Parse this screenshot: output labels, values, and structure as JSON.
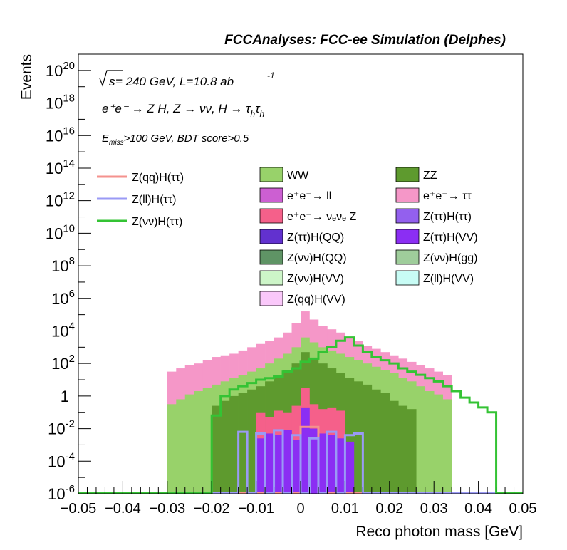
{
  "header": {
    "title": "FCCAnalyses: FCC-ee Simulation (Delphes)"
  },
  "annotations": {
    "sqrt_s": "s",
    "energy_lumi": " = 240 GeV, L=10.8 ab",
    "lumi_exp": "-1",
    "process": "e⁺e⁻ → Z H, Z → νν, H → τ",
    "process_sub1": "h",
    "process_tau2": "τ",
    "process_sub2": "h",
    "cut_E": "E",
    "cut_sub": "miss",
    "cut_rest": ">100 GeV, BDT score>0.5"
  },
  "chart_data": {
    "type": "area",
    "title": "FCCAnalyses: FCC-ee Simulation (Delphes)",
    "xlabel": "Reco photon mass [GeV]",
    "ylabel": "Events",
    "xlim": [
      -0.05,
      0.05
    ],
    "ylim_log10": [
      -6,
      21
    ],
    "y_scale": "log",
    "x_ticks": [
      "−0.05",
      "−0.04",
      "−0.03",
      "−0.02",
      "−0.01",
      "0",
      "0.01",
      "0.02",
      "0.03",
      "0.04",
      "0.05"
    ],
    "y_ticks": [
      {
        "base": "10",
        "exp": "-6",
        "log": -6
      },
      {
        "base": "10",
        "exp": "-4",
        "log": -4
      },
      {
        "base": "10",
        "exp": "-2",
        "log": -2
      },
      {
        "base": "1",
        "exp": "",
        "log": 0
      },
      {
        "base": "10",
        "exp": "2",
        "log": 2
      },
      {
        "base": "10",
        "exp": "4",
        "log": 4
      },
      {
        "base": "10",
        "exp": "6",
        "log": 6
      },
      {
        "base": "10",
        "exp": "8",
        "log": 8
      },
      {
        "base": "10",
        "exp": "10",
        "log": 10
      },
      {
        "base": "10",
        "exp": "12",
        "log": 12
      },
      {
        "base": "10",
        "exp": "14",
        "log": 14
      },
      {
        "base": "10",
        "exp": "16",
        "log": 16
      },
      {
        "base": "10",
        "exp": "18",
        "log": 18
      },
      {
        "base": "10",
        "exp": "20",
        "log": 20
      }
    ],
    "bin_edges_range": [
      -0.05,
      0.05
    ],
    "n_bins": 50,
    "stack_note": "log10 of cumulative stacked event counts per bin; first bin listed corresponds to x=-0.05",
    "stack_log10": {
      "ee_tautau": [
        -6,
        -6,
        -6,
        -6,
        -6,
        -6,
        -6,
        -6,
        -6,
        -6,
        1.5,
        1.7,
        1.9,
        2.0,
        2.2,
        2.4,
        2.5,
        2.6,
        2.8,
        3.0,
        3.2,
        3.4,
        3.6,
        3.9,
        4.5,
        5.2,
        4.7,
        4.3,
        4.1,
        3.9,
        3.6,
        3.4,
        3.1,
        2.9,
        2.7,
        2.5,
        2.3,
        2.1,
        1.9,
        1.7,
        1.5,
        1.3,
        -6,
        -6,
        -6,
        -6,
        -6,
        -6,
        -6,
        -6
      ],
      "WW": [
        -6,
        -6,
        -6,
        -6,
        -6,
        -6,
        -6,
        -6,
        -6,
        -6,
        -0.5,
        -0.2,
        0.1,
        0.3,
        0.5,
        0.7,
        0.9,
        1.1,
        1.3,
        1.5,
        1.7,
        2.0,
        2.3,
        2.6,
        3.0,
        3.6,
        3.3,
        3.0,
        2.8,
        2.6,
        2.4,
        2.2,
        2.0,
        1.8,
        1.6,
        1.4,
        1.1,
        0.9,
        0.6,
        0.3,
        0.1,
        -0.2,
        -6,
        -6,
        -6,
        -6,
        -6,
        -6,
        -6,
        -6
      ],
      "ZZ": [
        -6,
        -6,
        -6,
        -6,
        -6,
        -6,
        -6,
        -6,
        -6,
        -6,
        -6,
        -6,
        -6,
        -6,
        -6,
        -0.6,
        -0.3,
        0.0,
        0.2,
        0.4,
        0.6,
        0.9,
        1.2,
        1.6,
        2.0,
        2.7,
        2.3,
        2.0,
        1.7,
        1.4,
        1.1,
        0.9,
        0.7,
        0.4,
        0.2,
        -0.3,
        -0.6,
        -0.8,
        -6,
        -6,
        -6,
        -6,
        -6,
        -6,
        -6,
        -6,
        -6,
        -6,
        -6,
        -6
      ],
      "ee_nunuZ": [
        -6,
        -6,
        -6,
        -6,
        -6,
        -6,
        -6,
        -6,
        -6,
        -6,
        -6,
        -6,
        -6,
        -6,
        -6,
        -6,
        -6,
        -6,
        -6,
        -6,
        -1.0,
        -1.3,
        -0.9,
        -1.0,
        -0.6,
        0.5,
        -0.5,
        -0.8,
        -0.7,
        -0.9,
        -6,
        -6,
        -6,
        -6,
        -6,
        -6,
        -6,
        -6,
        -6,
        -6,
        -6,
        -6,
        -6,
        -6,
        -6,
        -6,
        -6,
        -6,
        -6,
        -6
      ],
      "ZtautauHVV": [
        -6,
        -6,
        -6,
        -6,
        -6,
        -6,
        -6,
        -6,
        -6,
        -6,
        -6,
        -6,
        -6,
        -6,
        -6,
        -6,
        -6,
        -6,
        -6,
        -6,
        -2.6,
        -2.3,
        -2.4,
        -2.1,
        -2.7,
        -0.7,
        -2.0,
        -2.3,
        -2.4,
        -2.6,
        -2.8,
        -6,
        -6,
        -6,
        -6,
        -6,
        -6,
        -6,
        -6,
        -6,
        -6,
        -6,
        -6,
        -6,
        -6,
        -6,
        -6,
        -6,
        -6,
        -6
      ]
    },
    "lines": [
      {
        "name": "Z(qq)H(ττ)",
        "color": "#f4928e",
        "log10": [
          -6,
          -6,
          -6,
          -6,
          -6,
          -6,
          -6,
          -6,
          -6,
          -6,
          -6,
          -6,
          -6,
          -6,
          -6,
          -6,
          -6,
          -6,
          -6,
          -6,
          -6,
          -6,
          -6,
          -6,
          -6,
          -1.9,
          -1.9,
          -6,
          -6,
          -6,
          -6,
          -6,
          -6,
          -6,
          -6,
          -6,
          -6,
          -6,
          -6,
          -6,
          -6,
          -6,
          -6,
          -6,
          -6,
          -6,
          -6,
          -6,
          -6,
          -6
        ]
      },
      {
        "name": "Z(ll)H(ττ)",
        "color": "#9a9af5",
        "log10": [
          -6,
          -6,
          -6,
          -6,
          -6,
          -6,
          -6,
          -6,
          -6,
          -6,
          -6,
          -6,
          -6,
          -6,
          -6,
          -6,
          -6,
          -6,
          -2.2,
          -6,
          -2.3,
          -6,
          -2.1,
          -6,
          -2.4,
          -6,
          -2.6,
          -6,
          -2.2,
          -6,
          -2.4,
          -2.3,
          -6,
          -6,
          -6,
          -6,
          -6,
          -6,
          -6,
          -6,
          -6,
          -6,
          -6,
          -6,
          -6,
          -6,
          -6,
          -6,
          -6,
          -6
        ]
      },
      {
        "name": "Z(νν)H(ττ)",
        "color": "#34c334",
        "log10": [
          -6,
          -6,
          -6,
          -6,
          -6,
          -6,
          -6,
          -6,
          -6,
          -6,
          -6,
          -6,
          -6,
          -6,
          -6,
          -1.2,
          0.0,
          0.4,
          0.6,
          0.8,
          1.0,
          1.1,
          1.2,
          1.5,
          1.7,
          2.1,
          2.3,
          2.7,
          3.0,
          3.4,
          3.6,
          3.1,
          2.7,
          2.4,
          2.2,
          2.0,
          1.7,
          1.5,
          1.3,
          1.1,
          0.9,
          0.6,
          0.3,
          -0.1,
          -0.4,
          -0.7,
          -1.0,
          -6,
          -6,
          -6
        ]
      }
    ],
    "legend": {
      "placement": "top",
      "lines": [
        "Z(qq)H(ττ)",
        "Z(ll)H(ττ)",
        "Z(νν)H(ττ)"
      ],
      "fills": [
        {
          "label": "WW",
          "color": "#98d26a"
        },
        {
          "label": "ZZ",
          "color": "#5e9a2e"
        },
        {
          "label": "e⁺e⁻→ ll",
          "color": "#cc5fd2"
        },
        {
          "label": "e⁺e⁻→ ττ",
          "color": "#f597c8"
        },
        {
          "label": "e⁺e⁻→ νₑνₑ Z",
          "color": "#f5608a"
        },
        {
          "label": "Z(ττ)H(ττ)",
          "color": "#9360ee"
        },
        {
          "label": "Z(ττ)H(QQ)",
          "color": "#6231cf"
        },
        {
          "label": "Z(ττ)H(VV)",
          "color": "#8b2ef3"
        },
        {
          "label": "Z(νν)H(QQ)",
          "color": "#5f9465"
        },
        {
          "label": "Z(νν)H(gg)",
          "color": "#9fcd9b"
        },
        {
          "label": "Z(νν)H(VV)",
          "color": "#cdf5c8"
        },
        {
          "label": "Z(ll)H(VV)",
          "color": "#c8fcf5"
        },
        {
          "label": "Z(qq)H(VV)",
          "color": "#fac8fa"
        }
      ]
    },
    "grid": false
  }
}
